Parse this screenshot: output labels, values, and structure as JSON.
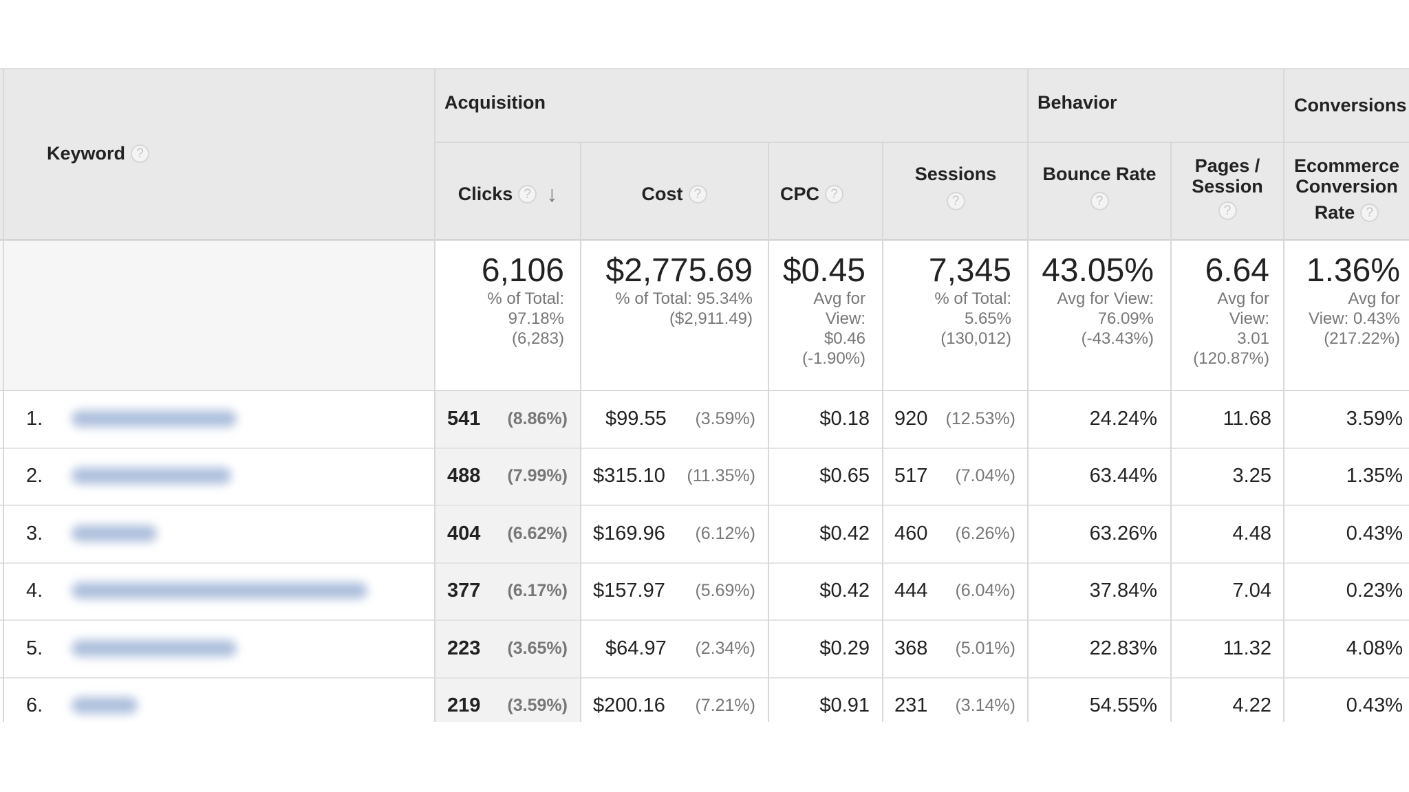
{
  "header": {
    "keyword_label": "Keyword",
    "groups": {
      "acquisition": "Acquisition",
      "behavior": "Behavior",
      "conversions": "Conversions"
    },
    "columns": {
      "clicks": "Clicks",
      "cost": "Cost",
      "cpc": "CPC",
      "sessions": "Sessions",
      "bounce_rate": "Bounce Rate",
      "pages_line1": "Pages /",
      "pages_line2": "Session",
      "ecom_line1": "Ecommerce",
      "ecom_line2": "Conversion",
      "ecom_line3": "Rate"
    },
    "help_glyph": "?",
    "sort_glyph": "↓"
  },
  "totals": {
    "clicks": {
      "value": "6,106",
      "l1": "% of Total:",
      "l2": "97.18%",
      "l3": "(6,283)"
    },
    "cost": {
      "value": "$2,775.69",
      "l1": "% of Total: 95.34%",
      "l2": "($2,911.49)"
    },
    "cpc": {
      "value": "$0.45",
      "l1": "Avg for",
      "l2": "View:",
      "l3": "$0.46",
      "l4": "(-1.90%)"
    },
    "sessions": {
      "value": "7,345",
      "l1": "% of Total:",
      "l2": "5.65%",
      "l3": "(130,012)"
    },
    "bounce": {
      "value": "43.05%",
      "l1": "Avg for View:",
      "l2": "76.09%",
      "l3": "(-43.43%)"
    },
    "pages": {
      "value": "6.64",
      "l1": "Avg for",
      "l2": "View:",
      "l3": "3.01",
      "l4": "(120.87%)"
    },
    "ecom": {
      "value": "1.36%",
      "l1": "Avg for",
      "l2": "View: 0.43%",
      "l3": "(217.22%)"
    }
  },
  "rows": [
    {
      "rank": "1.",
      "clicks": "541",
      "clicks_pct": "(8.86%)",
      "cost": "$99.55",
      "cost_pct": "(3.59%)",
      "cpc": "$0.18",
      "sessions": "920",
      "sessions_pct": "(12.53%)",
      "bounce": "24.24%",
      "pages": "11.68",
      "ecom": "3.59%"
    },
    {
      "rank": "2.",
      "clicks": "488",
      "clicks_pct": "(7.99%)",
      "cost": "$315.10",
      "cost_pct": "(11.35%)",
      "cpc": "$0.65",
      "sessions": "517",
      "sessions_pct": "(7.04%)",
      "bounce": "63.44%",
      "pages": "3.25",
      "ecom": "1.35%"
    },
    {
      "rank": "3.",
      "clicks": "404",
      "clicks_pct": "(6.62%)",
      "cost": "$169.96",
      "cost_pct": "(6.12%)",
      "cpc": "$0.42",
      "sessions": "460",
      "sessions_pct": "(6.26%)",
      "bounce": "63.26%",
      "pages": "4.48",
      "ecom": "0.43%"
    },
    {
      "rank": "4.",
      "clicks": "377",
      "clicks_pct": "(6.17%)",
      "cost": "$157.97",
      "cost_pct": "(5.69%)",
      "cpc": "$0.42",
      "sessions": "444",
      "sessions_pct": "(6.04%)",
      "bounce": "37.84%",
      "pages": "7.04",
      "ecom": "0.23%"
    },
    {
      "rank": "5.",
      "clicks": "223",
      "clicks_pct": "(3.65%)",
      "cost": "$64.97",
      "cost_pct": "(2.34%)",
      "cpc": "$0.29",
      "sessions": "368",
      "sessions_pct": "(5.01%)",
      "bounce": "22.83%",
      "pages": "11.32",
      "ecom": "4.08%"
    },
    {
      "rank": "6.",
      "clicks": "219",
      "clicks_pct": "(3.59%)",
      "cost": "$200.16",
      "cost_pct": "(7.21%)",
      "cpc": "$0.91",
      "sessions": "231",
      "sessions_pct": "(3.14%)",
      "bounce": "54.55%",
      "pages": "4.22",
      "ecom": "0.43%"
    }
  ]
}
